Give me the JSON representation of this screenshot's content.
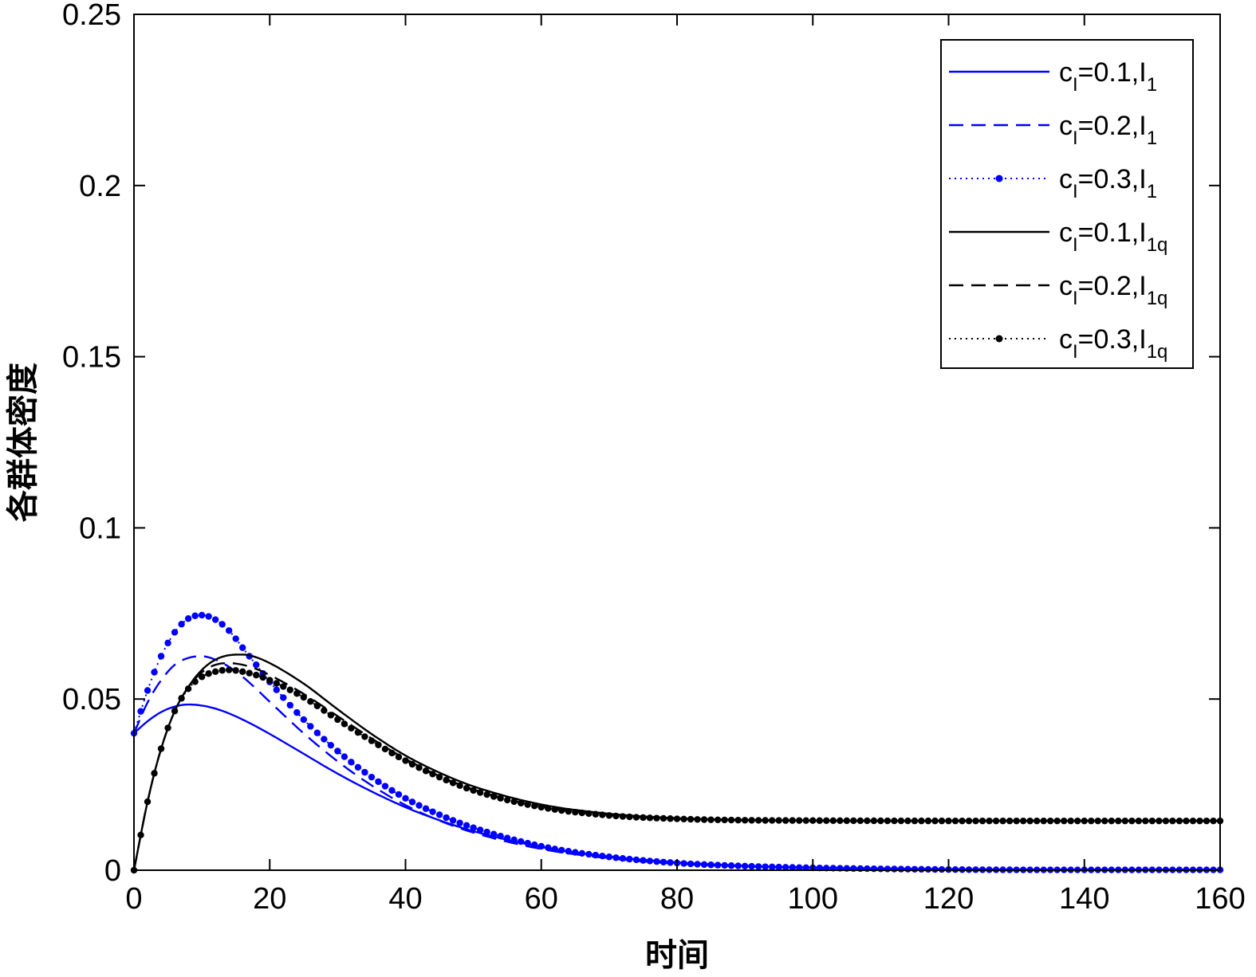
{
  "chart_data": {
    "type": "line",
    "xlabel": "时间",
    "ylabel": "各群体密度",
    "xlim": [
      0,
      160
    ],
    "ylim": [
      0,
      0.25
    ],
    "xticks": [
      "0",
      "20",
      "40",
      "60",
      "80",
      "100",
      "120",
      "140",
      "160"
    ],
    "yticks": [
      "0",
      "0.05",
      "0.1",
      "0.15",
      "0.2",
      "0.25"
    ],
    "legend_position": "top-right",
    "grid": false,
    "colors": {
      "blue": "#0000ff",
      "black": "#000000"
    },
    "x": [
      0,
      2,
      4,
      6,
      8,
      10,
      12,
      14,
      16,
      18,
      20,
      25,
      30,
      35,
      40,
      45,
      50,
      60,
      70,
      80,
      90,
      100,
      120,
      140,
      160
    ],
    "series": [
      {
        "name": "c_I=0.1,I_1",
        "label_main": "c",
        "label_sub1": "I",
        "label_mid": "=0.1,I",
        "label_sub2": "1",
        "color": "#0000ff",
        "style": "solid",
        "values": [
          0.04,
          0.0435,
          0.0462,
          0.0478,
          0.0484,
          0.0481,
          0.0472,
          0.0458,
          0.044,
          0.042,
          0.0398,
          0.034,
          0.0282,
          0.023,
          0.0184,
          0.0146,
          0.0114,
          0.0068,
          0.004,
          0.0023,
          0.0013,
          0.0008,
          0.0003,
          0.0001,
          0.0001
        ]
      },
      {
        "name": "c_I=0.2,I_1",
        "label_main": "c",
        "label_sub1": "I",
        "label_mid": "=0.2,I",
        "label_sub2": "1",
        "color": "#0000ff",
        "style": "dashed",
        "values": [
          0.04,
          0.049,
          0.0555,
          0.06,
          0.062,
          0.0625,
          0.0615,
          0.0594,
          0.0565,
          0.053,
          0.0492,
          0.04,
          0.0318,
          0.0248,
          0.019,
          0.0145,
          0.011,
          0.0062,
          0.0035,
          0.0019,
          0.0011,
          0.0006,
          0.0002,
          0.0001,
          0.0001
        ]
      },
      {
        "name": "c_I=0.3,I_1",
        "label_main": "c",
        "label_sub1": "I",
        "label_mid": "=0.3,I",
        "label_sub2": "1",
        "color": "#0000ff",
        "style": "dotted-marker",
        "values": [
          0.04,
          0.0525,
          0.0625,
          0.0695,
          0.0735,
          0.0745,
          0.0732,
          0.07,
          0.065,
          0.06,
          0.055,
          0.044,
          0.0348,
          0.0272,
          0.021,
          0.0162,
          0.0124,
          0.007,
          0.0039,
          0.0021,
          0.0012,
          0.0007,
          0.0002,
          0.0001,
          0.0001
        ]
      },
      {
        "name": "c_I=0.1,I_1q",
        "label_main": "c",
        "label_sub1": "I",
        "label_mid": "=0.1,I",
        "label_sub2": "1q",
        "color": "#000000",
        "style": "solid",
        "values": [
          0.0,
          0.02,
          0.0355,
          0.0465,
          0.0535,
          0.0585,
          0.0615,
          0.0628,
          0.063,
          0.0622,
          0.0605,
          0.0545,
          0.047,
          0.0398,
          0.0335,
          0.0285,
          0.0245,
          0.0192,
          0.0165,
          0.0152,
          0.0147,
          0.0145,
          0.0144,
          0.0144,
          0.0144
        ]
      },
      {
        "name": "c_I=0.2,I_1q",
        "label_main": "c",
        "label_sub1": "I",
        "label_mid": "=0.2,I",
        "label_sub2": "1q",
        "color": "#000000",
        "style": "dashed",
        "values": [
          0.0,
          0.02,
          0.0355,
          0.0465,
          0.0535,
          0.0578,
          0.06,
          0.0605,
          0.06,
          0.0588,
          0.057,
          0.0515,
          0.045,
          0.0385,
          0.0325,
          0.0275,
          0.0236,
          0.0186,
          0.0162,
          0.0151,
          0.0146,
          0.0145,
          0.0144,
          0.0144,
          0.0144
        ]
      },
      {
        "name": "c_I=0.3,I_1q",
        "label_main": "c",
        "label_sub1": "I",
        "label_mid": "=0.3,I",
        "label_sub2": "1q",
        "color": "#000000",
        "style": "dotted-marker",
        "values": [
          0.0,
          0.02,
          0.0355,
          0.0465,
          0.053,
          0.0565,
          0.058,
          0.0585,
          0.058,
          0.057,
          0.0555,
          0.0505,
          0.044,
          0.0378,
          0.032,
          0.0272,
          0.0233,
          0.0184,
          0.016,
          0.015,
          0.0146,
          0.0145,
          0.0144,
          0.0144,
          0.0144
        ]
      }
    ]
  }
}
